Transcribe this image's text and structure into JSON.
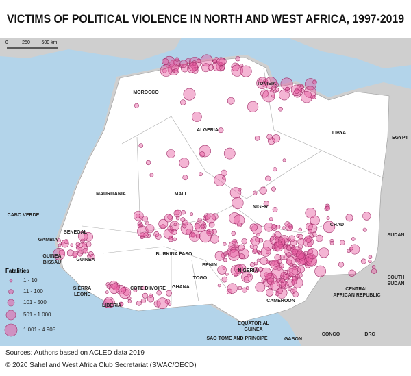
{
  "title": "VICTIMS OF POLITICAL VIOLENCE IN NORTH AND WEST AFRICA, 1997-2019",
  "scale_bar": [
    "0",
    "250",
    "500 km"
  ],
  "countries": [
    {
      "lines": [
        "MOROCCO"
      ]
    },
    {
      "lines": [
        "ALGERIA"
      ]
    },
    {
      "lines": [
        "TUNISIA"
      ]
    },
    {
      "lines": [
        "LIBYA"
      ]
    },
    {
      "lines": [
        "EGYPT"
      ]
    },
    {
      "lines": [
        "MAURITANIA"
      ]
    },
    {
      "lines": [
        "MALI"
      ]
    },
    {
      "lines": [
        "NIGER"
      ]
    },
    {
      "lines": [
        "CHAD"
      ]
    },
    {
      "lines": [
        "SUDAN"
      ]
    },
    {
      "lines": [
        "CABO VERDE"
      ]
    },
    {
      "lines": [
        "SENEGAL"
      ]
    },
    {
      "lines": [
        "GAMBIA"
      ]
    },
    {
      "lines": [
        "GUINEA",
        "BISSAU"
      ]
    },
    {
      "lines": [
        "GUINEA"
      ]
    },
    {
      "lines": [
        "BURKINA FASO"
      ]
    },
    {
      "lines": [
        "BENIN"
      ]
    },
    {
      "lines": [
        "NIGERIA"
      ]
    },
    {
      "lines": [
        "TOGO"
      ]
    },
    {
      "lines": [
        "GHANA"
      ]
    },
    {
      "lines": [
        "COTE D'IVOIRE"
      ]
    },
    {
      "lines": [
        "SIERRA",
        "LEONE"
      ]
    },
    {
      "lines": [
        "LIBERIA"
      ]
    },
    {
      "lines": [
        "CAMEROON"
      ]
    },
    {
      "lines": [
        "CENTRAL",
        "AFRICAN REPUBLIC"
      ]
    },
    {
      "lines": [
        "SOUTH",
        "SUDAN"
      ]
    },
    {
      "lines": [
        "EQUATORIAL",
        "GUINEA"
      ]
    },
    {
      "lines": [
        "SAO TOME AND PRINCIPE"
      ]
    },
    {
      "lines": [
        "GABON"
      ]
    },
    {
      "lines": [
        "CONGO"
      ]
    },
    {
      "lines": [
        "DRC"
      ]
    }
  ],
  "legend": {
    "title": "Fatalities",
    "items": [
      "1 - 10",
      "11 - 100",
      "101 - 500",
      "501 - 1 000",
      "1 001 - 4 905"
    ]
  },
  "footer": {
    "source": "Sources: Authors based on ACLED data 2019",
    "copyright": "© 2020 Sahel and West Africa Club Secretariat (SWAC/OECD)"
  }
}
